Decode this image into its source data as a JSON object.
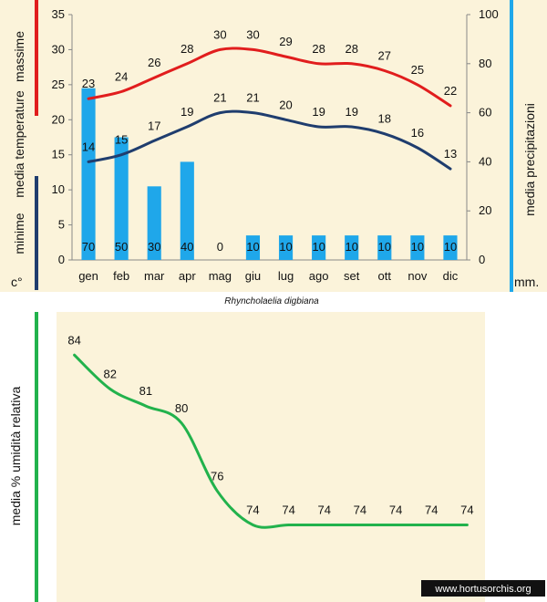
{
  "caption": "Rhyncholaelia digbiana",
  "watermark": "www.hortusorchis.org",
  "colors": {
    "max": "#e11d1d",
    "min": "#1f3d6e",
    "bars": "#1fa7ea",
    "humidity": "#22b24c",
    "panel": "#fbf3da"
  },
  "chart_data": [
    {
      "type": "bar+line",
      "categories": [
        "gen",
        "feb",
        "mar",
        "apr",
        "mag",
        "giu",
        "lug",
        "ago",
        "set",
        "ott",
        "nov",
        "dic"
      ],
      "left_axis": {
        "unit": "c°",
        "ylim": [
          0,
          35
        ],
        "ticks": [
          0,
          5,
          10,
          15,
          20,
          25,
          30,
          35
        ],
        "label_main": "media  temperature",
        "label_max": "massime",
        "label_min": "minime"
      },
      "right_axis": {
        "unit": "mm.",
        "ylim": [
          0,
          100
        ],
        "ticks": [
          0,
          20,
          40,
          60,
          80,
          100
        ],
        "label": "media  precipitazioni"
      },
      "series": [
        {
          "role": "max",
          "axis": "left",
          "values": [
            23,
            24,
            26,
            28,
            30,
            30,
            29,
            28,
            28,
            27,
            25,
            22
          ]
        },
        {
          "role": "min",
          "axis": "left",
          "values": [
            14,
            15,
            17,
            19,
            21,
            21,
            20,
            19,
            19,
            18,
            16,
            13
          ]
        },
        {
          "role": "precip",
          "axis": "right",
          "type": "bar",
          "values": [
            70,
            50,
            30,
            40,
            0,
            10,
            10,
            10,
            10,
            10,
            10,
            10
          ]
        }
      ]
    },
    {
      "type": "line",
      "categories": [
        "gen",
        "feb",
        "mar",
        "apr",
        "mag",
        "giu",
        "lug",
        "ago",
        "set",
        "ott",
        "nov",
        "dic"
      ],
      "ylabel": "media %  umidità relativa",
      "ylim": [
        70,
        86
      ],
      "series": [
        {
          "role": "humidity",
          "values": [
            84,
            82,
            81,
            80,
            76,
            74,
            74,
            74,
            74,
            74,
            74,
            74
          ]
        }
      ]
    }
  ]
}
